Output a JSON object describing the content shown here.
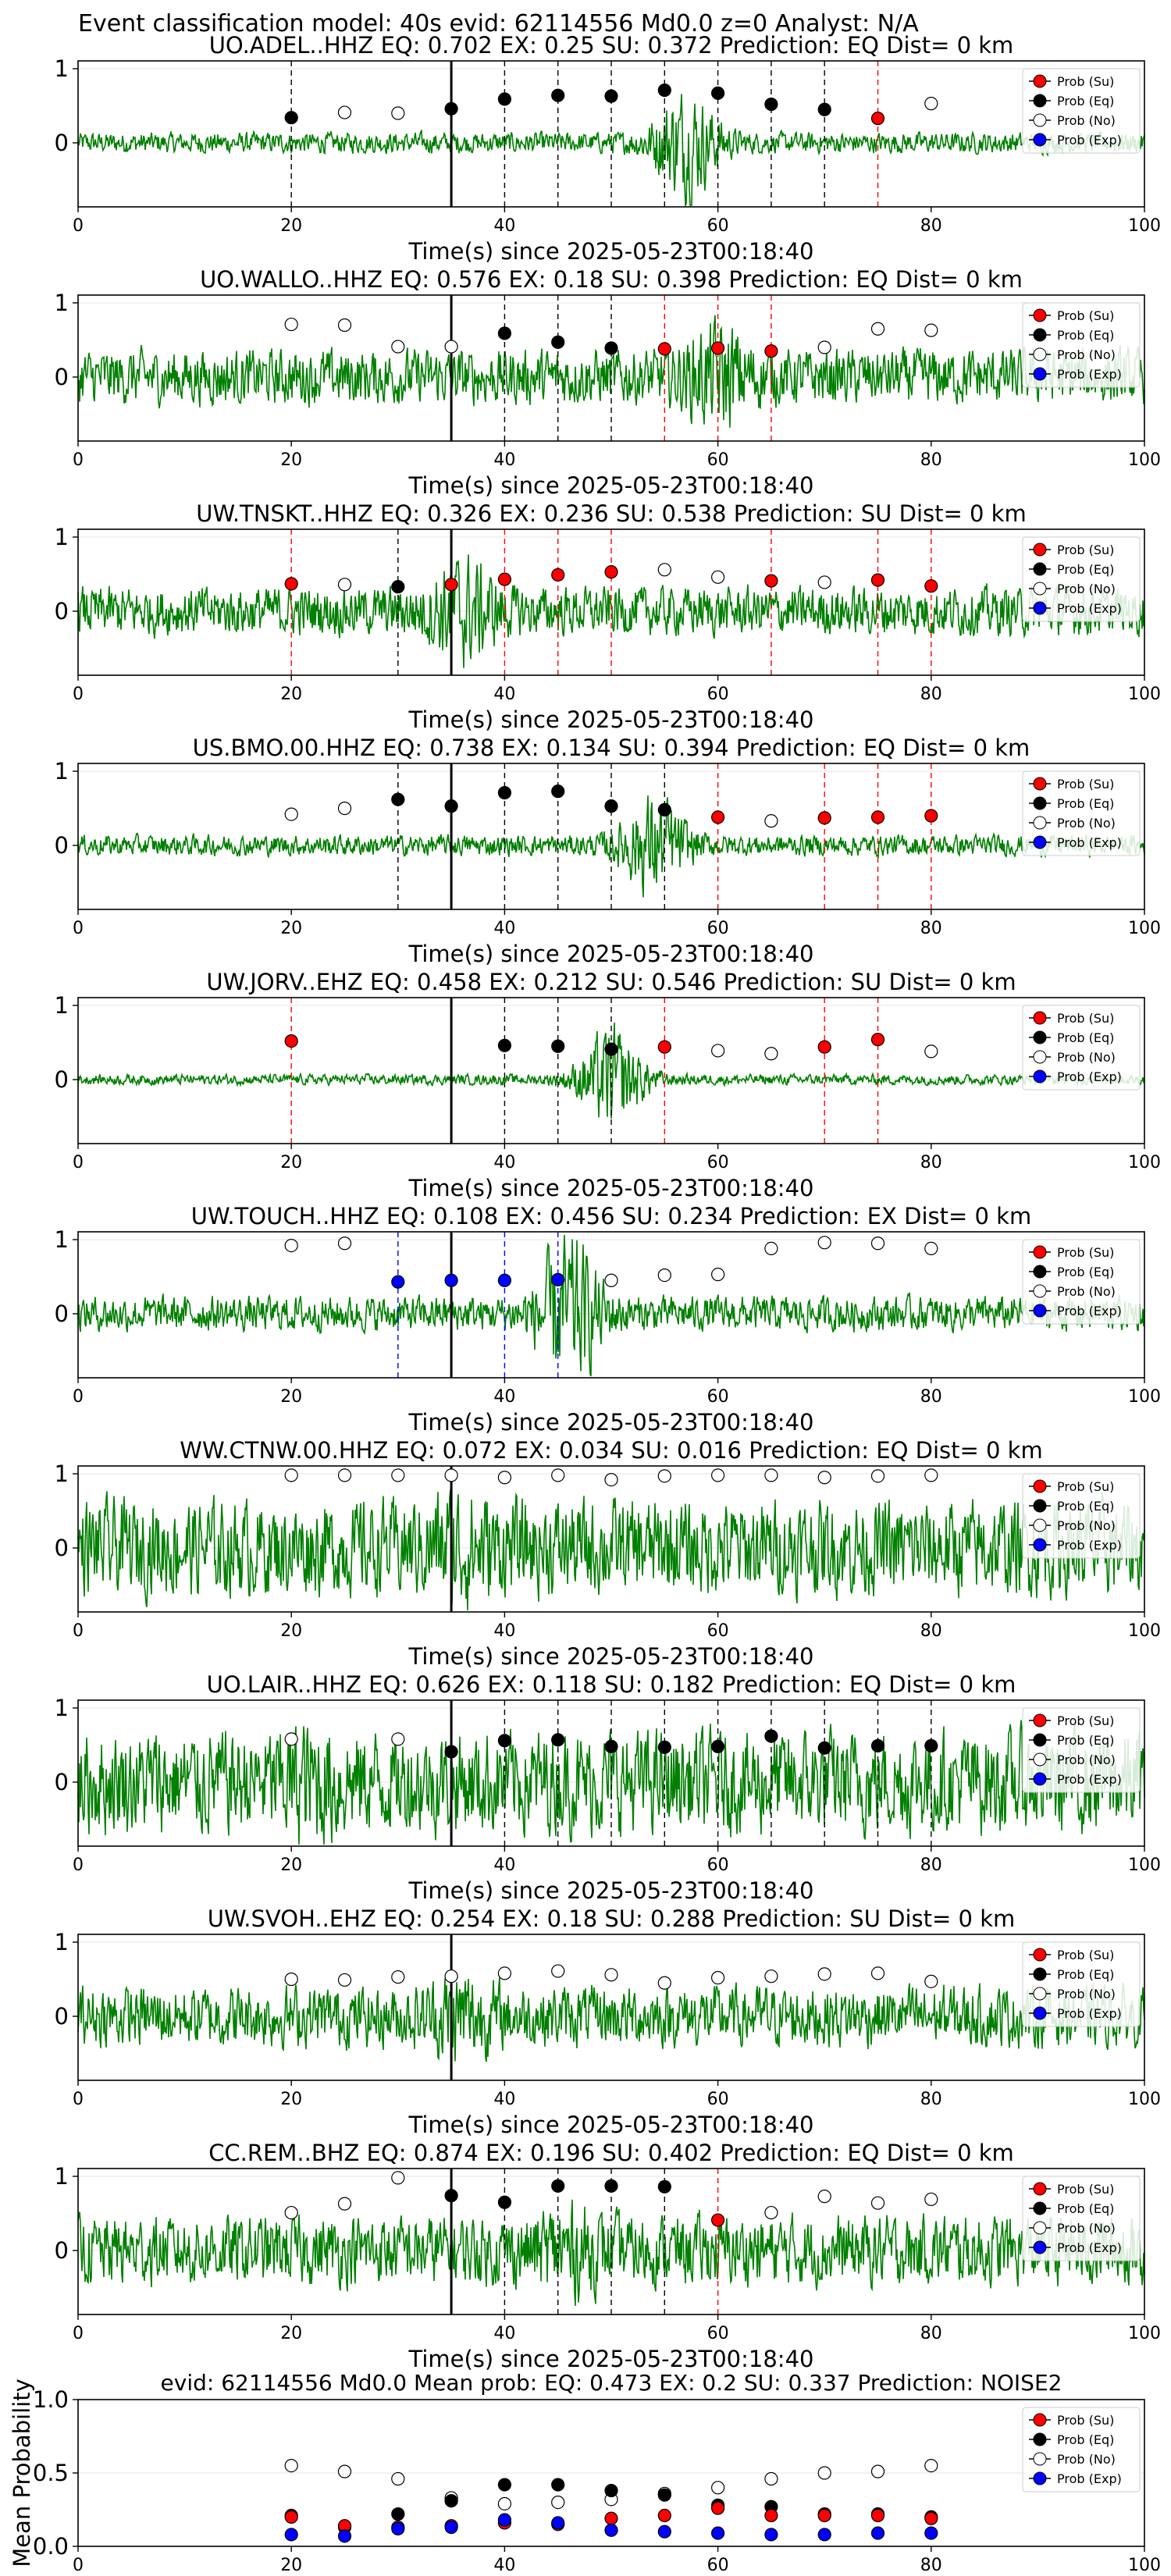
{
  "suptitle": "Event classification model: 40s evid: 62114556 Md0.0 z=0 Analyst: N/A",
  "xlabel": "Time(s) since 2025-05-23T00:18:40",
  "legend": [
    "Prob (Su)",
    "Prob (Eq)",
    "Prob (No)",
    "Prob (Exp)"
  ],
  "colors": {
    "waveform": "#008000",
    "su": "#ff0000",
    "eq": "#000000",
    "no": "#ffffff",
    "exp": "#0000ff",
    "pick": "#000000"
  },
  "chart_data": [
    {
      "type": "line",
      "title": "UO.ADEL..HHZ   EQ: 0.702   EX: 0.25   SU: 0.372   Prediction: EQ    Dist= 0 km",
      "xlim": [
        0,
        100
      ],
      "yticks": [
        "1",
        "0"
      ],
      "xticks": [
        "0",
        "20",
        "40",
        "60",
        "80",
        "100"
      ],
      "pick_line": 35,
      "waveform": {
        "amp": 0.12,
        "burst_center": 57,
        "burst_amp": 0.55
      },
      "points": [
        [
          20,
          "eq",
          0.34
        ],
        [
          25,
          "no",
          0.41
        ],
        [
          30,
          "no",
          0.4
        ],
        [
          35,
          "eq",
          0.46
        ],
        [
          40,
          "eq",
          0.59
        ],
        [
          45,
          "eq",
          0.64
        ],
        [
          50,
          "eq",
          0.63
        ],
        [
          55,
          "eq",
          0.71
        ],
        [
          60,
          "eq",
          0.67
        ],
        [
          65,
          "eq",
          0.52
        ],
        [
          70,
          "eq",
          0.45
        ],
        [
          75,
          "su",
          0.33
        ],
        [
          80,
          "no",
          0.53
        ]
      ]
    },
    {
      "type": "line",
      "title": "UO.WALLO..HHZ   EQ: 0.576   EX: 0.18   SU: 0.398   Prediction: EQ    Dist= 0 km",
      "xlim": [
        0,
        100
      ],
      "yticks": [
        "1",
        "0"
      ],
      "xticks": [
        "0",
        "20",
        "40",
        "60",
        "80",
        "100"
      ],
      "pick_line": 35,
      "waveform": {
        "amp": 0.32,
        "burst_center": 60,
        "burst_amp": 0.35
      },
      "points": [
        [
          20,
          "no",
          0.71
        ],
        [
          25,
          "no",
          0.7
        ],
        [
          30,
          "no",
          0.41
        ],
        [
          35,
          "no",
          0.41
        ],
        [
          40,
          "eq",
          0.59
        ],
        [
          45,
          "eq",
          0.47
        ],
        [
          50,
          "eq",
          0.39
        ],
        [
          55,
          "su",
          0.38
        ],
        [
          60,
          "su",
          0.39
        ],
        [
          65,
          "su",
          0.35
        ],
        [
          70,
          "no",
          0.4
        ],
        [
          75,
          "no",
          0.65
        ],
        [
          80,
          "no",
          0.63
        ]
      ]
    },
    {
      "type": "line",
      "title": "UW.TNSKT..HHZ   EQ: 0.326   EX: 0.236   SU: 0.538   Prediction: SU    Dist= 0 km",
      "xlim": [
        0,
        100
      ],
      "yticks": [
        "1",
        "0"
      ],
      "xticks": [
        "0",
        "20",
        "40",
        "60",
        "80",
        "100"
      ],
      "pick_line": 35,
      "waveform": {
        "amp": 0.28,
        "burst_center": 36,
        "burst_amp": 0.4
      },
      "points": [
        [
          20,
          "su",
          0.37
        ],
        [
          25,
          "no",
          0.36
        ],
        [
          30,
          "eq",
          0.33
        ],
        [
          35,
          "su",
          0.36
        ],
        [
          40,
          "su",
          0.43
        ],
        [
          45,
          "su",
          0.49
        ],
        [
          50,
          "su",
          0.53
        ],
        [
          55,
          "no",
          0.56
        ],
        [
          60,
          "no",
          0.46
        ],
        [
          65,
          "su",
          0.41
        ],
        [
          70,
          "no",
          0.39
        ],
        [
          75,
          "su",
          0.42
        ],
        [
          80,
          "su",
          0.34
        ]
      ]
    },
    {
      "type": "line",
      "title": "US.BMO.00.HHZ   EQ: 0.738   EX: 0.134   SU: 0.394   Prediction: EQ    Dist= 0 km",
      "xlim": [
        0,
        100
      ],
      "yticks": [
        "1",
        "0"
      ],
      "xticks": [
        "0",
        "20",
        "40",
        "60",
        "80",
        "100"
      ],
      "pick_line": 35,
      "waveform": {
        "amp": 0.12,
        "burst_center": 54,
        "burst_amp": 0.5
      },
      "points": [
        [
          20,
          "no",
          0.42
        ],
        [
          25,
          "no",
          0.5
        ],
        [
          30,
          "eq",
          0.62
        ],
        [
          35,
          "eq",
          0.53
        ],
        [
          40,
          "eq",
          0.71
        ],
        [
          45,
          "eq",
          0.73
        ],
        [
          50,
          "eq",
          0.53
        ],
        [
          55,
          "eq",
          0.48
        ],
        [
          60,
          "su",
          0.38
        ],
        [
          65,
          "no",
          0.33
        ],
        [
          70,
          "su",
          0.37
        ],
        [
          75,
          "su",
          0.38
        ],
        [
          80,
          "su",
          0.4
        ]
      ]
    },
    {
      "type": "line",
      "title": "UW.JORV..EHZ   EQ: 0.458   EX: 0.212   SU: 0.546   Prediction: SU    Dist= 0 km",
      "xlim": [
        0,
        100
      ],
      "yticks": [
        "1",
        "0"
      ],
      "xticks": [
        "0",
        "20",
        "40",
        "60",
        "80",
        "100"
      ],
      "pick_line": 35,
      "waveform": {
        "amp": 0.06,
        "burst_center": 50,
        "burst_amp": 0.55
      },
      "points": [
        [
          20,
          "su",
          0.52
        ],
        [
          40,
          "eq",
          0.46
        ],
        [
          45,
          "eq",
          0.45
        ],
        [
          50,
          "eq",
          0.41
        ],
        [
          55,
          "su",
          0.44
        ],
        [
          60,
          "no",
          0.39
        ],
        [
          65,
          "no",
          0.35
        ],
        [
          70,
          "su",
          0.44
        ],
        [
          75,
          "su",
          0.54
        ],
        [
          80,
          "no",
          0.38
        ]
      ]
    },
    {
      "type": "line",
      "title": "UW.TOUCH..HHZ   EQ: 0.108   EX: 0.456   SU: 0.234   Prediction: EX    Dist= 0 km",
      "xlim": [
        0,
        100
      ],
      "yticks": [
        "1",
        "0"
      ],
      "xticks": [
        "0",
        "20",
        "40",
        "60",
        "80",
        "100"
      ],
      "pick_line": 35,
      "waveform": {
        "amp": 0.2,
        "burst_center": 46,
        "burst_amp": 0.7
      },
      "points": [
        [
          20,
          "no",
          0.92
        ],
        [
          25,
          "no",
          0.95
        ],
        [
          30,
          "exp",
          0.43
        ],
        [
          35,
          "exp",
          0.45
        ],
        [
          40,
          "exp",
          0.45
        ],
        [
          45,
          "exp",
          0.46
        ],
        [
          50,
          "no",
          0.45
        ],
        [
          55,
          "no",
          0.52
        ],
        [
          60,
          "no",
          0.53
        ],
        [
          65,
          "no",
          0.88
        ],
        [
          70,
          "no",
          0.96
        ],
        [
          75,
          "no",
          0.95
        ],
        [
          80,
          "no",
          0.88
        ]
      ]
    },
    {
      "type": "line",
      "title": "WW.CTNW.00.HHZ   EQ: 0.072   EX: 0.034   SU: 0.016   Prediction: EQ    Dist= 0 km",
      "xlim": [
        0,
        100
      ],
      "yticks": [
        "1",
        "0"
      ],
      "xticks": [
        "0",
        "20",
        "40",
        "60",
        "80",
        "100"
      ],
      "pick_line": 35,
      "waveform": {
        "amp": 0.55,
        "burst_center": 36,
        "burst_amp": 0.2
      },
      "points": [
        [
          20,
          "no",
          0.98
        ],
        [
          25,
          "no",
          0.98
        ],
        [
          30,
          "no",
          0.98
        ],
        [
          35,
          "no",
          0.98
        ],
        [
          40,
          "no",
          0.95
        ],
        [
          45,
          "no",
          0.98
        ],
        [
          50,
          "no",
          0.92
        ],
        [
          55,
          "no",
          0.97
        ],
        [
          60,
          "no",
          0.98
        ],
        [
          65,
          "no",
          0.98
        ],
        [
          70,
          "no",
          0.95
        ],
        [
          75,
          "no",
          0.97
        ],
        [
          80,
          "no",
          0.98
        ]
      ]
    },
    {
      "type": "line",
      "title": "UO.LAIR..HHZ   EQ: 0.626   EX: 0.118   SU: 0.182   Prediction: EQ    Dist= 0 km",
      "xlim": [
        0,
        100
      ],
      "yticks": [
        "1",
        "0"
      ],
      "xticks": [
        "0",
        "20",
        "40",
        "60",
        "80",
        "100"
      ],
      "pick_line": 35,
      "waveform": {
        "amp": 0.6,
        "burst_center": 22,
        "burst_amp": 0.2
      },
      "points": [
        [
          20,
          "no",
          0.58
        ],
        [
          30,
          "no",
          0.58
        ],
        [
          35,
          "eq",
          0.41
        ],
        [
          40,
          "eq",
          0.56
        ],
        [
          45,
          "eq",
          0.57
        ],
        [
          50,
          "eq",
          0.48
        ],
        [
          55,
          "eq",
          0.47
        ],
        [
          60,
          "eq",
          0.48
        ],
        [
          65,
          "eq",
          0.62
        ],
        [
          70,
          "eq",
          0.46
        ],
        [
          75,
          "eq",
          0.49
        ],
        [
          80,
          "eq",
          0.49
        ]
      ]
    },
    {
      "type": "line",
      "title": "UW.SVOH..EHZ   EQ: 0.254   EX: 0.18   SU: 0.288   Prediction: SU    Dist= 0 km",
      "xlim": [
        0,
        100
      ],
      "yticks": [
        "1",
        "0"
      ],
      "xticks": [
        "0",
        "20",
        "40",
        "60",
        "80",
        "100"
      ],
      "pick_line": 35,
      "waveform": {
        "amp": 0.35,
        "burst_center": 36,
        "burst_amp": 0.25
      },
      "points": [
        [
          20,
          "no",
          0.5
        ],
        [
          25,
          "no",
          0.49
        ],
        [
          30,
          "no",
          0.53
        ],
        [
          35,
          "no",
          0.54
        ],
        [
          40,
          "no",
          0.58
        ],
        [
          45,
          "no",
          0.61
        ],
        [
          50,
          "no",
          0.56
        ],
        [
          55,
          "no",
          0.45
        ],
        [
          60,
          "no",
          0.52
        ],
        [
          65,
          "no",
          0.54
        ],
        [
          70,
          "no",
          0.57
        ],
        [
          75,
          "no",
          0.58
        ],
        [
          80,
          "no",
          0.47
        ]
      ]
    },
    {
      "type": "line",
      "title": "CC.REM..BHZ   EQ: 0.874   EX: 0.196   SU: 0.402   Prediction: EQ    Dist= 0 km",
      "xlim": [
        0,
        100
      ],
      "yticks": [
        "1",
        "0"
      ],
      "xticks": [
        "0",
        "20",
        "40",
        "60",
        "80",
        "100"
      ],
      "pick_line": 35,
      "waveform": {
        "amp": 0.4,
        "burst_center": 46,
        "burst_amp": 0.2
      },
      "points": [
        [
          20,
          "no",
          0.51
        ],
        [
          25,
          "no",
          0.63
        ],
        [
          30,
          "no",
          0.98
        ],
        [
          35,
          "eq",
          0.74
        ],
        [
          40,
          "eq",
          0.65
        ],
        [
          45,
          "eq",
          0.87
        ],
        [
          50,
          "eq",
          0.87
        ],
        [
          55,
          "eq",
          0.86
        ],
        [
          60,
          "su",
          0.41
        ],
        [
          65,
          "no",
          0.51
        ],
        [
          70,
          "no",
          0.73
        ],
        [
          75,
          "no",
          0.64
        ],
        [
          80,
          "no",
          0.69
        ]
      ]
    },
    {
      "type": "scatter",
      "title": "evid: 62114556   Md0.0    Mean prob:    EQ: 0.473   EX: 0.2   SU: 0.337    Prediction: NOISE2",
      "ylabel": "Mean Probability",
      "xlim": [
        0,
        100
      ],
      "ylim": [
        0,
        1
      ],
      "yticks": [
        "1.0",
        "0.5",
        "0.0"
      ],
      "xticks": [
        "0",
        "20",
        "40",
        "60",
        "80",
        "100"
      ],
      "x": [
        20,
        25,
        30,
        35,
        40,
        45,
        50,
        55,
        60,
        65,
        70,
        75,
        80
      ],
      "series": [
        {
          "name": "Prob (No)",
          "values": [
            0.55,
            0.51,
            0.46,
            0.33,
            0.29,
            0.3,
            0.32,
            0.36,
            0.4,
            0.46,
            0.5,
            0.51,
            0.55
          ]
        },
        {
          "name": "Prob (Eq)",
          "values": [
            0.21,
            0.13,
            0.22,
            0.31,
            0.42,
            0.42,
            0.38,
            0.35,
            0.28,
            0.27,
            0.22,
            0.22,
            0.2
          ]
        },
        {
          "name": "Prob (Su)",
          "values": [
            0.2,
            0.14,
            0.13,
            0.14,
            0.16,
            0.15,
            0.19,
            0.21,
            0.26,
            0.21,
            0.21,
            0.21,
            0.19
          ]
        },
        {
          "name": "Prob (Exp)",
          "values": [
            0.08,
            0.07,
            0.12,
            0.13,
            0.18,
            0.16,
            0.11,
            0.1,
            0.09,
            0.08,
            0.08,
            0.09,
            0.09
          ]
        }
      ]
    }
  ]
}
